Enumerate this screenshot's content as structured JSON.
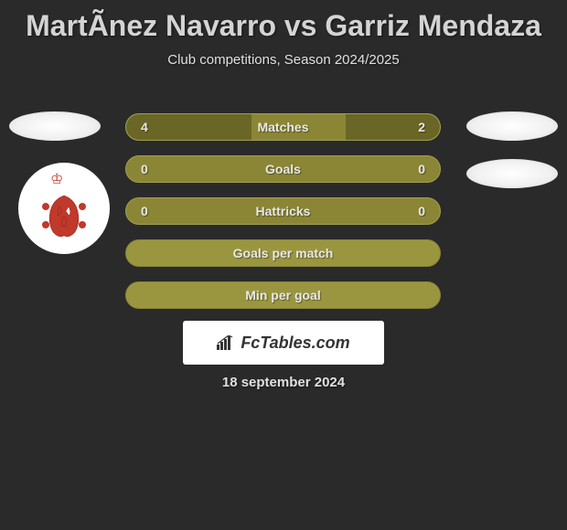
{
  "title": "MartÃ­nez Navarro vs Garriz Mendaza",
  "subtitle": "Club competitions, Season 2024/2025",
  "date": "18 september 2024",
  "branding": "FcTables.com",
  "colors": {
    "background": "#2a2a2a",
    "bar_base": "#8a8635",
    "bar_fill": "#6a6625",
    "bar_border": "#a0a050",
    "text": "#e8e8e8",
    "white": "#ffffff",
    "crest_red": "#c0392b"
  },
  "stats": [
    {
      "label": "Matches",
      "left_value": "4",
      "right_value": "2",
      "left_fill_pct": 40,
      "right_fill_pct": 30
    },
    {
      "label": "Goals",
      "left_value": "0",
      "right_value": "0",
      "left_fill_pct": 0,
      "right_fill_pct": 0
    },
    {
      "label": "Hattricks",
      "left_value": "0",
      "right_value": "0",
      "left_fill_pct": 0,
      "right_fill_pct": 0
    },
    {
      "label": "Goals per match",
      "left_value": "",
      "right_value": "",
      "full": true
    },
    {
      "label": "Min per goal",
      "left_value": "",
      "right_value": "",
      "full": true
    }
  ]
}
